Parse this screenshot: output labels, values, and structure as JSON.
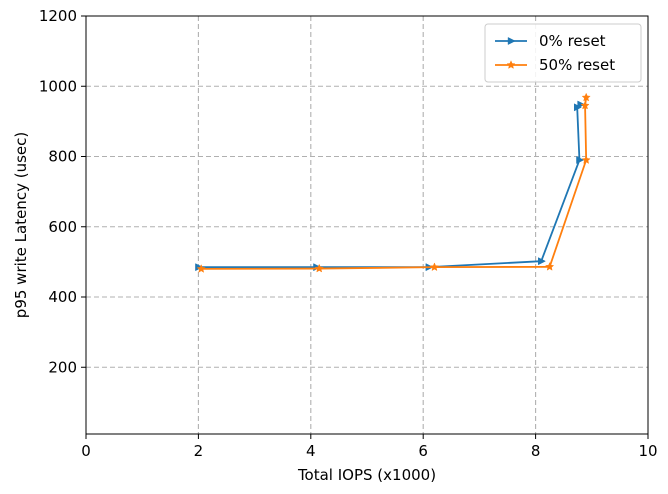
{
  "chart_data": {
    "type": "line",
    "xlabel": "Total IOPS (x1000)",
    "ylabel": "p95 write Latency (usec)",
    "xlim": [
      0,
      10
    ],
    "ylim": [
      10,
      1200
    ],
    "xticks": [
      0,
      2,
      4,
      6,
      8,
      10
    ],
    "yticks": [
      200,
      400,
      600,
      800,
      1000,
      1200
    ],
    "grid": true,
    "grid_style": "dashed",
    "legend_position": "top-right",
    "series": [
      {
        "name": "  0% reset",
        "color": "#1f77b4",
        "marker": "triangle-right",
        "points": [
          {
            "x": 2.0,
            "y": 485
          },
          {
            "x": 4.1,
            "y": 485
          },
          {
            "x": 6.1,
            "y": 485
          },
          {
            "x": 8.1,
            "y": 502
          },
          {
            "x": 8.78,
            "y": 790
          },
          {
            "x": 8.74,
            "y": 940
          },
          {
            "x": 8.8,
            "y": 948
          }
        ]
      },
      {
        "name": "50% reset",
        "color": "#ff7f0e",
        "marker": "star",
        "points": [
          {
            "x": 2.05,
            "y": 480
          },
          {
            "x": 4.15,
            "y": 481
          },
          {
            "x": 6.2,
            "y": 485
          },
          {
            "x": 8.25,
            "y": 486
          },
          {
            "x": 8.9,
            "y": 790
          },
          {
            "x": 8.88,
            "y": 945
          },
          {
            "x": 8.9,
            "y": 968
          }
        ]
      }
    ]
  }
}
